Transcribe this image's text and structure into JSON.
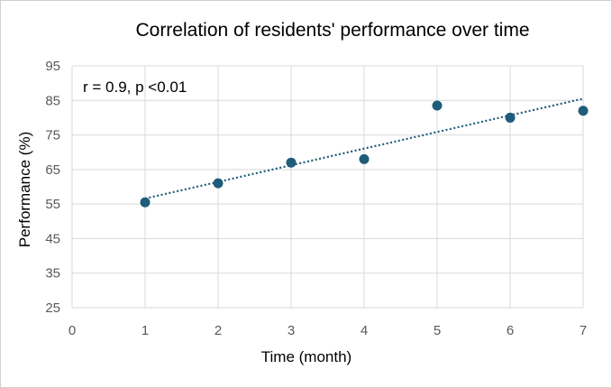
{
  "chart_data": {
    "type": "scatter",
    "title": "Correlation of residents' performance over time",
    "xlabel": "Time (month)",
    "ylabel": "Performance (%)",
    "annotation": "r = 0.9, p <0.01",
    "xlim": [
      0,
      7
    ],
    "ylim": [
      25,
      95
    ],
    "x_ticks": [
      0,
      1,
      2,
      3,
      4,
      5,
      6,
      7
    ],
    "y_ticks": [
      25,
      35,
      45,
      55,
      65,
      75,
      85,
      95
    ],
    "grid": "vertical and horizontal",
    "series": [
      {
        "x": [
          1,
          2,
          3,
          4,
          5,
          6,
          7
        ],
        "y": [
          55.5,
          61,
          67,
          68,
          83.5,
          80,
          82
        ],
        "color": "#1f5c7a"
      }
    ],
    "trendline": {
      "type": "linear",
      "style": "dotted",
      "color": "#1f5c7a",
      "x_range": [
        1,
        7
      ],
      "y_at_start": 56.6,
      "y_at_end": 85.5
    }
  }
}
